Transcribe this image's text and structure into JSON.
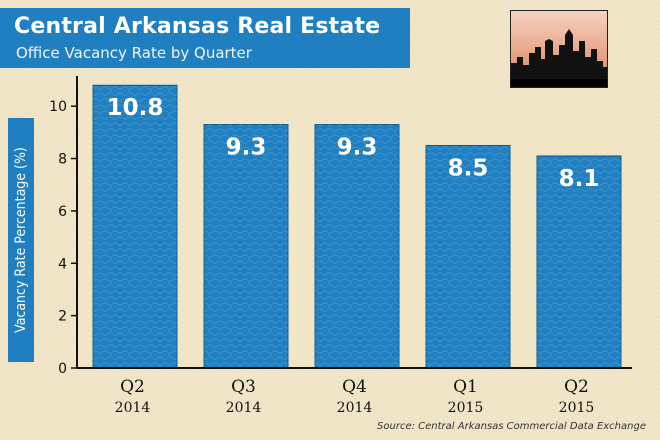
{
  "header": {
    "title": "Central Arkansas Real Estate",
    "subtitle": "Office Vacancy Rate by Quarter"
  },
  "source": "Source: Central Arkansas Commercial Data Exchange",
  "colors": {
    "bar": "#1f7fc0",
    "bar_edge": "#0f5f95",
    "header_bg": "#1f7fc0",
    "background": "#f2e6c9"
  },
  "chart_data": {
    "type": "bar",
    "title": "Office Vacancy Rate by Quarter",
    "xlabel": "",
    "ylabel": "Vacancy Rate Percentage (%)",
    "categories": [
      {
        "quarter": "Q2",
        "year": "2014"
      },
      {
        "quarter": "Q3",
        "year": "2014"
      },
      {
        "quarter": "Q4",
        "year": "2014"
      },
      {
        "quarter": "Q1",
        "year": "2015"
      },
      {
        "quarter": "Q2",
        "year": "2015"
      }
    ],
    "values": [
      10.8,
      9.3,
      9.3,
      8.5,
      8.1
    ],
    "value_labels": [
      "10.8",
      "9.3",
      "9.3",
      "8.5",
      "8.1"
    ],
    "ylim": [
      0,
      11
    ],
    "yticks": [
      0,
      2,
      4,
      6,
      8,
      10
    ],
    "grid": false,
    "legend": "none"
  }
}
